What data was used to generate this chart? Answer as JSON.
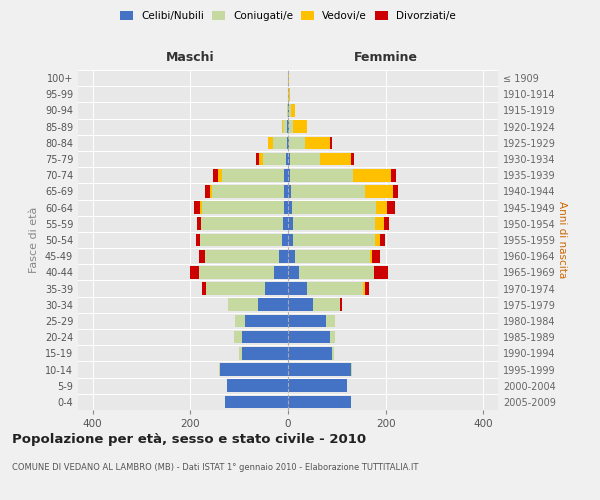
{
  "age_groups": [
    "0-4",
    "5-9",
    "10-14",
    "15-19",
    "20-24",
    "25-29",
    "30-34",
    "35-39",
    "40-44",
    "45-49",
    "50-54",
    "55-59",
    "60-64",
    "65-69",
    "70-74",
    "75-79",
    "80-84",
    "85-89",
    "90-94",
    "95-99",
    "100+"
  ],
  "birth_years": [
    "2005-2009",
    "2000-2004",
    "1995-1999",
    "1990-1994",
    "1985-1989",
    "1980-1984",
    "1975-1979",
    "1970-1974",
    "1965-1969",
    "1960-1964",
    "1955-1959",
    "1950-1954",
    "1945-1949",
    "1940-1944",
    "1935-1939",
    "1930-1934",
    "1925-1929",
    "1920-1924",
    "1915-1919",
    "1910-1914",
    "≤ 1909"
  ],
  "maschi": {
    "celibi": [
      130,
      125,
      140,
      95,
      95,
      88,
      62,
      48,
      28,
      18,
      12,
      10,
      8,
      8,
      8,
      4,
      2,
      2,
      0,
      0,
      0
    ],
    "coniugati": [
      0,
      0,
      2,
      5,
      15,
      20,
      60,
      120,
      155,
      152,
      168,
      168,
      168,
      148,
      128,
      48,
      28,
      8,
      3,
      0,
      0
    ],
    "vedovi": [
      0,
      0,
      0,
      0,
      0,
      0,
      0,
      0,
      0,
      0,
      0,
      0,
      4,
      4,
      8,
      8,
      10,
      3,
      0,
      0,
      0
    ],
    "divorziati": [
      0,
      0,
      0,
      0,
      0,
      0,
      0,
      8,
      18,
      12,
      8,
      8,
      12,
      10,
      10,
      5,
      0,
      0,
      0,
      0,
      0
    ]
  },
  "femmine": {
    "nubili": [
      130,
      120,
      130,
      90,
      85,
      78,
      52,
      38,
      22,
      15,
      10,
      10,
      8,
      6,
      5,
      4,
      2,
      2,
      2,
      0,
      0
    ],
    "coniugate": [
      0,
      0,
      2,
      5,
      12,
      18,
      55,
      115,
      155,
      152,
      168,
      168,
      172,
      152,
      128,
      62,
      32,
      8,
      4,
      2,
      0
    ],
    "vedove": [
      0,
      0,
      0,
      0,
      0,
      0,
      0,
      4,
      0,
      4,
      10,
      18,
      22,
      58,
      78,
      62,
      52,
      28,
      8,
      2,
      2
    ],
    "divorziate": [
      0,
      0,
      0,
      0,
      0,
      0,
      4,
      8,
      28,
      18,
      10,
      10,
      18,
      10,
      10,
      8,
      4,
      0,
      0,
      0,
      0
    ]
  },
  "color_celibi": "#4472c4",
  "color_coniugati": "#c5d9a0",
  "color_vedovi": "#ffc000",
  "color_divorziati": "#cc0000",
  "xlim": 430,
  "title": "Popolazione per età, sesso e stato civile - 2010",
  "subtitle": "COMUNE DI VEDANO AL LAMBRO (MB) - Dati ISTAT 1° gennaio 2010 - Elaborazione TUTTITALIA.IT",
  "ylabel_left": "Fasce di età",
  "ylabel_right": "Anni di nascita",
  "xlabel_maschi": "Maschi",
  "xlabel_femmine": "Femmine",
  "bg_color": "#f0f0f0",
  "plot_bg_color": "#e8e8e8",
  "grid_color": "#ffffff"
}
